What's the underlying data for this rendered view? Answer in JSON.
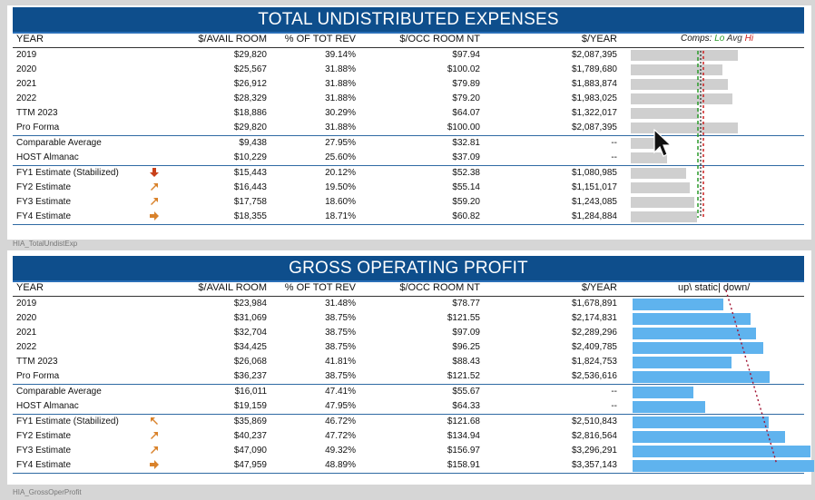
{
  "panel1": {
    "title": "TOTAL UNDISTRIBUTED EXPENSES",
    "headers": {
      "year": "YEAR",
      "avail": "$/AVAIL ROOM",
      "pct": "% OF TOT REV",
      "occ": "$/OCC ROOM NT",
      "yr": "$/YEAR"
    },
    "legend": {
      "comps": "Comps:",
      "lo": "Lo",
      "avg": "Avg",
      "hi": "Hi"
    },
    "rows": [
      {
        "year": "2019",
        "avail": "$29,820",
        "pct": "39.14%",
        "occ": "$97.94",
        "yr": "$2,087,395",
        "bar": 1.0
      },
      {
        "year": "2020",
        "avail": "$25,567",
        "pct": "31.88%",
        "occ": "$100.02",
        "yr": "$1,789,680",
        "bar": 0.857
      },
      {
        "year": "2021",
        "avail": "$26,912",
        "pct": "31.88%",
        "occ": "$79.89",
        "yr": "$1,883,874",
        "bar": 0.903
      },
      {
        "year": "2022",
        "avail": "$28,329",
        "pct": "31.88%",
        "occ": "$79.20",
        "yr": "$1,983,025",
        "bar": 0.95
      },
      {
        "year": "TTM 2023",
        "avail": "$18,886",
        "pct": "30.29%",
        "occ": "$64.07",
        "yr": "$1,322,017",
        "bar": 0.633
      },
      {
        "year": "Pro Forma",
        "avail": "$29,820",
        "pct": "31.88%",
        "occ": "$100.00",
        "yr": "$2,087,395",
        "bar": 1.0
      },
      {
        "year": "Comparable Average",
        "avail": "$9,438",
        "pct": "27.95%",
        "occ": "$32.81",
        "yr": "--",
        "bar": 0.316
      },
      {
        "year": "HOST Almanac",
        "avail": "$10,229",
        "pct": "25.60%",
        "occ": "$37.09",
        "yr": "--",
        "bar": 0.343
      },
      {
        "year": "FY1 Estimate (Stabilized)",
        "avail": "$15,443",
        "pct": "20.12%",
        "occ": "$52.38",
        "yr": "$1,080,985",
        "bar": 0.518,
        "icon": "arrow-down-icon"
      },
      {
        "year": "FY2 Estimate",
        "avail": "$16,443",
        "pct": "19.50%",
        "occ": "$55.14",
        "yr": "$1,151,017",
        "bar": 0.551,
        "icon": "arrow-up-right-icon"
      },
      {
        "year": "FY3 Estimate",
        "avail": "$17,758",
        "pct": "18.60%",
        "occ": "$59.20",
        "yr": "$1,243,085",
        "bar": 0.595,
        "icon": "arrow-up-right-icon"
      },
      {
        "year": "FY4 Estimate",
        "avail": "$18,355",
        "pct": "18.71%",
        "occ": "$60.82",
        "yr": "$1,284,884",
        "bar": 0.615,
        "icon": "arrow-right-icon"
      }
    ],
    "caption": "HIA_TotalUndistExp"
  },
  "panel2": {
    "title": "GROSS OPERATING PROFIT",
    "headers": {
      "year": "YEAR",
      "avail": "$/AVAIL ROOM",
      "pct": "% OF TOT REV",
      "occ": "$/OCC ROOM NT",
      "yr": "$/YEAR"
    },
    "legend": {
      "text": "up\\ static| down/"
    },
    "rows": [
      {
        "year": "2019",
        "avail": "$23,984",
        "pct": "31.48%",
        "occ": "$78.77",
        "yr": "$1,678,891",
        "bar": 0.5
      },
      {
        "year": "2020",
        "avail": "$31,069",
        "pct": "38.75%",
        "occ": "$121.55",
        "yr": "$2,174,831",
        "bar": 0.648
      },
      {
        "year": "2021",
        "avail": "$32,704",
        "pct": "38.75%",
        "occ": "$97.09",
        "yr": "$2,289,296",
        "bar": 0.682
      },
      {
        "year": "2022",
        "avail": "$34,425",
        "pct": "38.75%",
        "occ": "$96.25",
        "yr": "$2,409,785",
        "bar": 0.718
      },
      {
        "year": "TTM 2023",
        "avail": "$26,068",
        "pct": "41.81%",
        "occ": "$88.43",
        "yr": "$1,824,753",
        "bar": 0.543
      },
      {
        "year": "Pro Forma",
        "avail": "$36,237",
        "pct": "38.75%",
        "occ": "$121.52",
        "yr": "$2,536,616",
        "bar": 0.756
      },
      {
        "year": "Comparable Average",
        "avail": "$16,011",
        "pct": "47.41%",
        "occ": "$55.67",
        "yr": "--",
        "bar": 0.333
      },
      {
        "year": "HOST Almanac",
        "avail": "$19,159",
        "pct": "47.95%",
        "occ": "$64.33",
        "yr": "--",
        "bar": 0.4
      },
      {
        "year": "FY1 Estimate (Stabilized)",
        "avail": "$35,869",
        "pct": "46.72%",
        "occ": "$121.68",
        "yr": "$2,510,843",
        "bar": 0.748,
        "icon": "arrow-up-left-icon"
      },
      {
        "year": "FY2 Estimate",
        "avail": "$40,237",
        "pct": "47.72%",
        "occ": "$134.94",
        "yr": "$2,816,564",
        "bar": 0.839,
        "icon": "arrow-up-right-icon"
      },
      {
        "year": "FY3 Estimate",
        "avail": "$47,090",
        "pct": "49.32%",
        "occ": "$156.97",
        "yr": "$3,296,291",
        "bar": 0.982,
        "icon": "arrow-up-right-icon"
      },
      {
        "year": "FY4 Estimate",
        "avail": "$47,959",
        "pct": "48.89%",
        "occ": "$158.91",
        "yr": "$3,357,143",
        "bar": 1.0,
        "icon": "arrow-right-icon"
      }
    ],
    "caption": "HIA_GrossOperProfit"
  },
  "colors": {
    "banner": "#0e4e8c",
    "barGray": "#cfcfcf",
    "barBlue": "#5fb3ee",
    "iconOrange": "#d9822b",
    "iconRed": "#c8401a"
  }
}
